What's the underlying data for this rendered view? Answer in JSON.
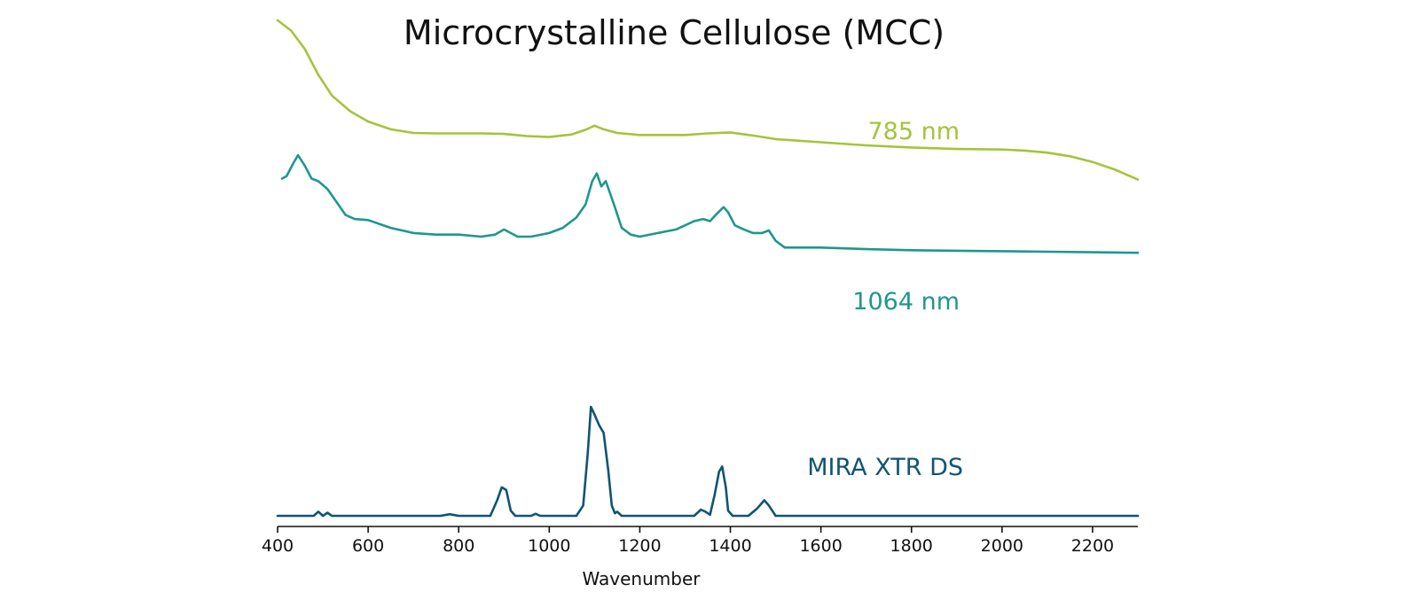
{
  "chart_data": {
    "type": "line",
    "title": "Microcrystalline Cellulose (MCC)",
    "xlabel": "Wavenumber",
    "ylabel": "",
    "xlim": [
      400,
      2300
    ],
    "xticks": [
      400,
      600,
      800,
      1000,
      1200,
      1400,
      1600,
      1800,
      2000,
      2200
    ],
    "yaxis_visible": false,
    "grid": false,
    "series": [
      {
        "name": "785 nm",
        "color": "#a4c43a",
        "x": [
          400,
          430,
          460,
          490,
          520,
          560,
          600,
          650,
          700,
          750,
          800,
          850,
          900,
          950,
          1000,
          1050,
          1080,
          1100,
          1120,
          1150,
          1200,
          1250,
          1300,
          1350,
          1400,
          1450,
          1500,
          1600,
          1700,
          1800,
          1900,
          2000,
          2050,
          2100,
          2150,
          2200,
          2250,
          2300
        ],
        "y": [
          9.55,
          9.35,
          9.0,
          8.5,
          8.1,
          7.8,
          7.6,
          7.45,
          7.38,
          7.37,
          7.37,
          7.37,
          7.36,
          7.32,
          7.3,
          7.35,
          7.44,
          7.52,
          7.45,
          7.38,
          7.34,
          7.34,
          7.34,
          7.37,
          7.39,
          7.33,
          7.26,
          7.2,
          7.14,
          7.1,
          7.07,
          7.06,
          7.04,
          7.0,
          6.93,
          6.82,
          6.67,
          6.48
        ]
      },
      {
        "name": "1064 nm",
        "color": "#1f9690",
        "x": [
          410,
          420,
          435,
          445,
          460,
          475,
          490,
          510,
          530,
          550,
          570,
          600,
          650,
          700,
          750,
          800,
          850,
          880,
          900,
          915,
          930,
          960,
          1000,
          1030,
          1060,
          1080,
          1095,
          1105,
          1115,
          1125,
          1135,
          1145,
          1160,
          1180,
          1200,
          1240,
          1280,
          1320,
          1340,
          1355,
          1370,
          1385,
          1395,
          1410,
          1430,
          1450,
          1470,
          1485,
          1500,
          1520,
          1600,
          1700,
          1800,
          1900,
          2000,
          2100,
          2200,
          2300
        ],
        "y": [
          6.5,
          6.55,
          6.8,
          6.95,
          6.75,
          6.5,
          6.45,
          6.3,
          6.05,
          5.8,
          5.72,
          5.7,
          5.55,
          5.45,
          5.42,
          5.42,
          5.38,
          5.42,
          5.52,
          5.45,
          5.38,
          5.38,
          5.45,
          5.55,
          5.75,
          6.0,
          6.45,
          6.6,
          6.35,
          6.45,
          6.2,
          5.95,
          5.55,
          5.42,
          5.38,
          5.45,
          5.52,
          5.68,
          5.72,
          5.68,
          5.82,
          5.95,
          5.85,
          5.6,
          5.52,
          5.45,
          5.45,
          5.5,
          5.3,
          5.17,
          5.17,
          5.14,
          5.12,
          5.11,
          5.1,
          5.09,
          5.08,
          5.07
        ]
      },
      {
        "name": "MIRA XTR DS",
        "color": "#0f5475",
        "x": [
          400,
          480,
          490,
          500,
          510,
          520,
          530,
          760,
          780,
          800,
          870,
          885,
          895,
          905,
          915,
          925,
          960,
          970,
          980,
          1060,
          1075,
          1085,
          1092,
          1100,
          1110,
          1120,
          1130,
          1138,
          1145,
          1150,
          1160,
          1320,
          1335,
          1345,
          1355,
          1365,
          1375,
          1382,
          1390,
          1395,
          1405,
          1440,
          1460,
          1475,
          1485,
          1500,
          1520,
          1540,
          2300
        ],
        "y": [
          0.0,
          0.0,
          0.08,
          0.0,
          0.06,
          0.0,
          0.0,
          0.0,
          0.03,
          0.0,
          0.0,
          0.3,
          0.55,
          0.5,
          0.1,
          0.0,
          0.0,
          0.04,
          0.0,
          0.0,
          0.2,
          1.2,
          2.1,
          1.95,
          1.75,
          1.6,
          0.9,
          0.2,
          0.05,
          0.08,
          0.0,
          0.0,
          0.12,
          0.08,
          0.02,
          0.4,
          0.85,
          0.95,
          0.55,
          0.1,
          0.0,
          0.0,
          0.15,
          0.3,
          0.2,
          0.0,
          0.0,
          0.0,
          0.0
        ]
      }
    ]
  }
}
